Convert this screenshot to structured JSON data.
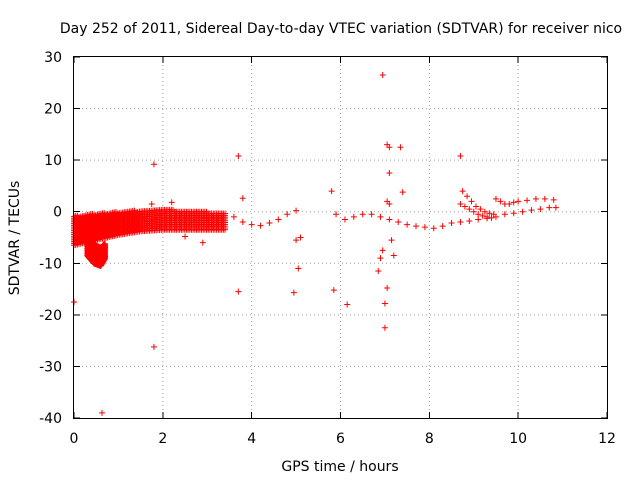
{
  "chart_data": {
    "type": "scatter",
    "title": "Day 252 of 2011, Sidereal Day-to-day VTEC variation (SDTVAR) for receiver nico",
    "xlabel": "GPS time / hours",
    "ylabel": "SDTVAR / TECUs",
    "xlim": [
      0,
      12
    ],
    "ylim": [
      -40,
      30
    ],
    "xticks": [
      "0",
      "2",
      "4",
      "6",
      "8",
      "10",
      "12"
    ],
    "yticks": [
      "-40",
      "-30",
      "-20",
      "-10",
      "0",
      "10",
      "20",
      "30"
    ],
    "grid": true,
    "marker": "plus",
    "color": "#ff0000",
    "bands": [
      {
        "x": [
          0.0,
          0.5,
          1.0,
          1.5,
          2.0,
          2.5,
          3.0,
          3.4
        ],
        "ylow": [
          -6.5,
          -5.5,
          -4.5,
          -3.8,
          -3.5,
          -3.5,
          -3.5,
          -3.5
        ],
        "yhigh": [
          -0.8,
          -0.3,
          0.0,
          0.3,
          0.5,
          0.2,
          0.0,
          -0.3
        ]
      },
      {
        "x": [
          0.3,
          0.45,
          0.6,
          0.7
        ],
        "ylow": [
          -8.5,
          -10.0,
          -10.5,
          -9.0
        ],
        "yhigh": [
          -5.0,
          -6.0,
          -7.0,
          -6.0
        ]
      }
    ],
    "x": [
      3.6,
      3.8,
      4.0,
      4.2,
      4.4,
      4.6,
      4.8,
      5.0,
      5.9,
      6.1,
      6.3,
      6.5,
      6.7,
      6.9,
      7.1,
      7.3,
      7.5,
      7.7,
      7.9,
      8.1,
      8.3,
      8.5,
      8.7,
      8.9,
      9.1,
      9.3,
      9.5,
      9.7,
      9.9,
      10.1,
      10.3,
      10.5,
      10.7,
      10.85,
      8.75,
      8.85,
      8.95,
      9.05,
      9.15,
      9.25,
      9.35,
      9.45,
      9.5,
      9.6,
      9.7,
      9.8,
      9.9,
      10.0,
      10.2,
      10.4,
      10.6,
      10.8,
      8.7,
      8.8,
      8.9,
      9.0,
      9.1,
      9.2,
      9.3,
      9.4,
      0.0,
      0.5,
      0.63,
      1.8,
      1.8,
      3.7,
      3.8,
      3.7,
      5.0,
      5.05,
      5.8,
      5.85,
      6.15,
      6.95,
      7.05,
      7.1,
      7.1,
      7.35,
      7.4,
      7.0,
      7.0,
      7.05,
      6.85,
      6.9,
      6.95,
      7.15,
      7.2,
      8.7,
      1.75,
      2.2,
      2.5,
      2.9,
      4.95,
      5.1,
      7.05,
      7.1
    ],
    "y": [
      -1.0,
      -2.0,
      -2.5,
      -2.7,
      -2.2,
      -1.5,
      -0.5,
      0.2,
      -0.5,
      -1.5,
      -1.0,
      -0.5,
      -0.5,
      -1.0,
      -1.5,
      -2.0,
      -2.5,
      -2.8,
      -3.0,
      -3.2,
      -2.8,
      -2.2,
      -2.0,
      -1.8,
      -1.5,
      -1.3,
      -1.0,
      -0.5,
      -0.3,
      0.0,
      0.3,
      0.5,
      0.8,
      0.8,
      4.0,
      3.0,
      2.0,
      1.0,
      0.5,
      0.0,
      -0.3,
      -0.5,
      2.5,
      2.0,
      1.5,
      1.5,
      1.8,
      2.0,
      2.2,
      2.5,
      2.5,
      2.3,
      1.5,
      1.0,
      0.5,
      0.0,
      -0.5,
      -0.8,
      -1.0,
      -1.2,
      -17.5,
      -2.0,
      -39.0,
      -26.2,
      9.2,
      -15.5,
      2.6,
      10.8,
      -5.5,
      -11.0,
      4.0,
      -15.2,
      -18.0,
      26.5,
      13.0,
      12.5,
      7.5,
      12.5,
      3.8,
      -17.8,
      -22.5,
      -14.8,
      -11.5,
      -9.0,
      -7.5,
      -5.5,
      -8.5,
      10.8,
      1.5,
      1.8,
      -4.8,
      -6.0,
      -15.7,
      -5.0,
      2.0,
      1.5
    ]
  }
}
